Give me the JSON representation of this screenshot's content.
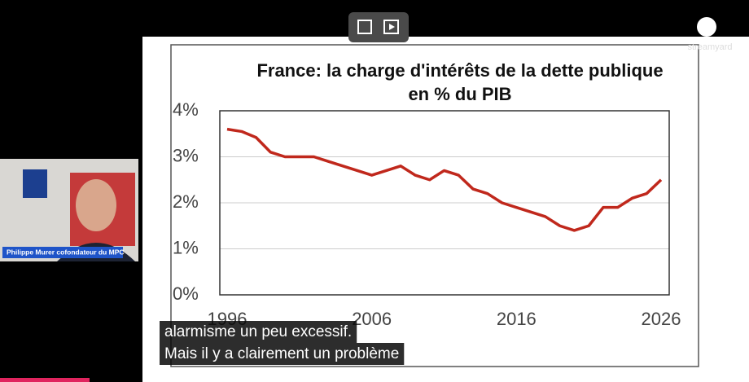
{
  "presenter": {
    "caption": "Philippe Murer cofondateur du MPC"
  },
  "watermark": "streamyard",
  "chart_data": {
    "type": "line",
    "title": "France: la charge d'intérêts de la dette publique",
    "subtitle": "en % du PIB",
    "x": [
      1996,
      1997,
      1998,
      1999,
      2000,
      2001,
      2002,
      2003,
      2004,
      2005,
      2006,
      2007,
      2008,
      2009,
      2010,
      2011,
      2012,
      2013,
      2014,
      2015,
      2016,
      2017,
      2018,
      2019,
      2020,
      2021,
      2022,
      2023,
      2024,
      2025,
      2026
    ],
    "series": [
      {
        "name": "Charge d'intérêts",
        "color": "#c0281c",
        "values": [
          3.6,
          3.55,
          3.42,
          3.1,
          3.0,
          3.0,
          3.0,
          2.9,
          2.8,
          2.7,
          2.6,
          2.7,
          2.8,
          2.6,
          2.5,
          2.7,
          2.6,
          2.3,
          2.2,
          2.0,
          1.9,
          1.8,
          1.7,
          1.5,
          1.4,
          1.5,
          1.9,
          1.9,
          2.1,
          2.2,
          2.5
        ]
      }
    ],
    "xlim": [
      1996,
      2026
    ],
    "xticks": [
      1996,
      2006,
      2016,
      2026
    ],
    "ylim": [
      0,
      4
    ],
    "yticks": [
      {
        "value": 0,
        "label": "0%"
      },
      {
        "value": 1,
        "label": "1%"
      },
      {
        "value": 2,
        "label": "2%"
      },
      {
        "value": 3,
        "label": "3%"
      },
      {
        "value": 4,
        "label": "4%"
      }
    ],
    "grid": true
  },
  "subtitles": [
    "alarmisme un peu excessif.",
    "Mais il y a clairement un problème"
  ]
}
